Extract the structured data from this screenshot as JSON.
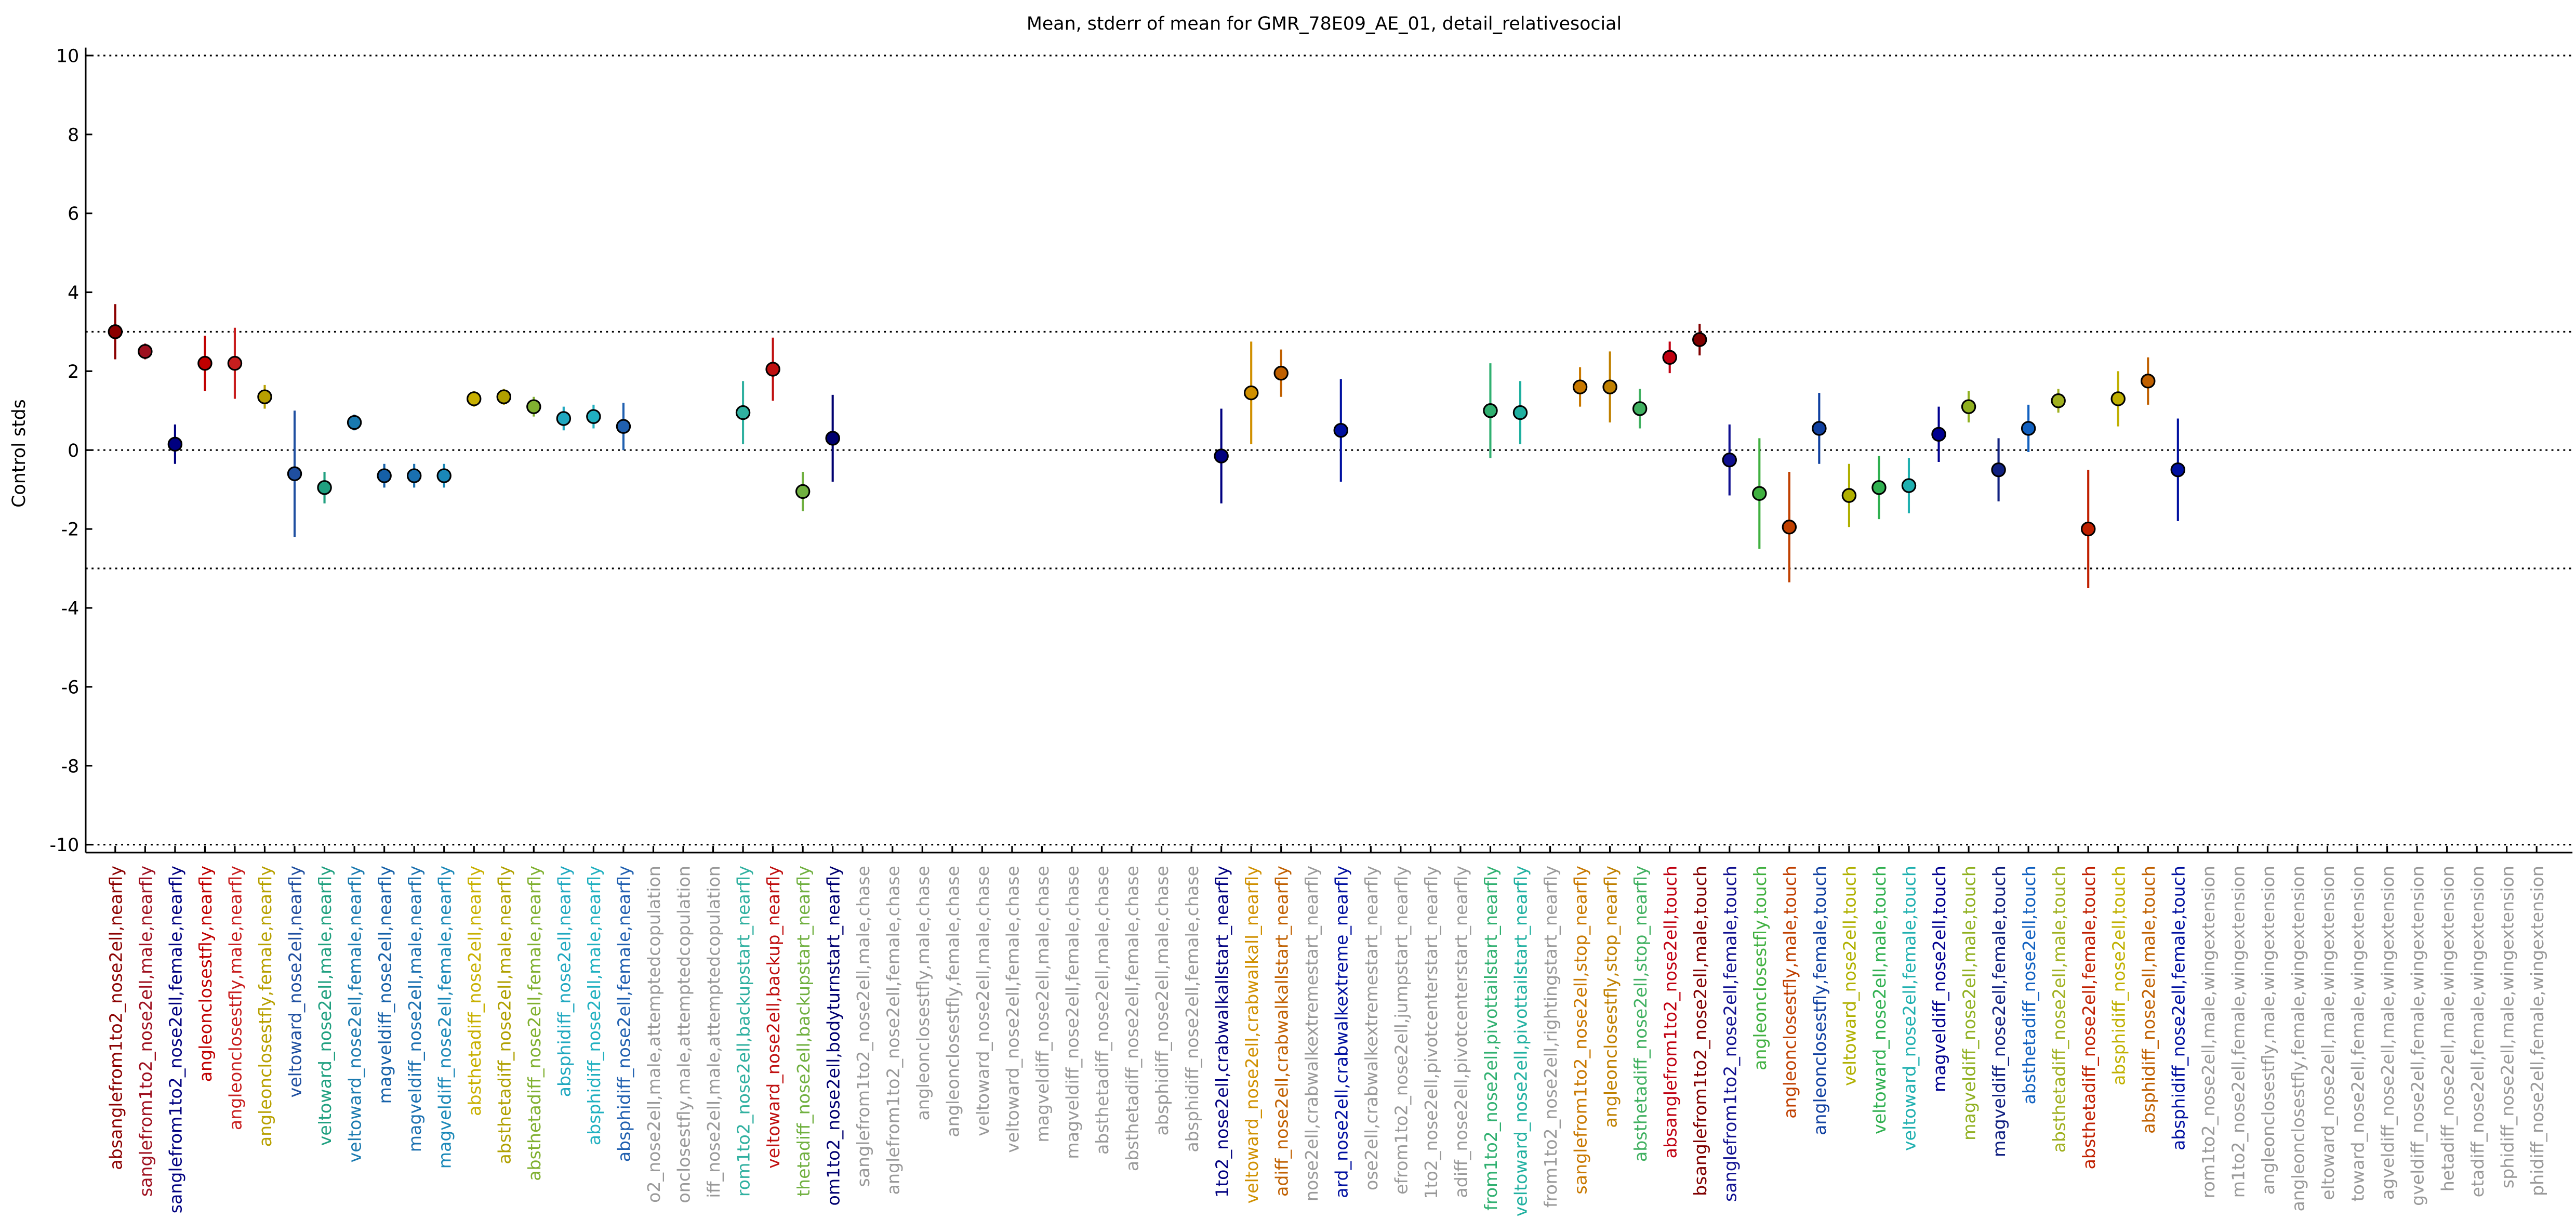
{
  "chart_data": {
    "type": "errorbar",
    "title": "Mean, stderr of mean for GMR_78E09_AE_01, detail_relativesocial",
    "y_label": "Control stds",
    "ylim": [
      -10.2,
      10.2
    ],
    "yticks": [
      -10,
      -8,
      -6,
      -4,
      -2,
      0,
      2,
      4,
      6,
      8,
      10
    ],
    "hlines": [
      -10,
      -3,
      0,
      3,
      10
    ],
    "categories": [
      "absanglefrom1to2_nose2ell,nearfly",
      "sanglefrom1to2_nose2ell,male,nearfly",
      "sanglefrom1to2_nose2ell,female,nearfly",
      "angleonclosestfly,nearfly",
      "angleonclosestfly,male,nearfly",
      "angleonclosestfly,female,nearfly",
      "veltoward_nose2ell,nearfly",
      "veltoward_nose2ell,male,nearfly",
      "veltoward_nose2ell,female,nearfly",
      "magveldiff_nose2ell,nearfly",
      "magveldiff_nose2ell,male,nearfly",
      "magveldiff_nose2ell,female,nearfly",
      "absthetadiff_nose2ell,nearfly",
      "absthetadiff_nose2ell,male,nearfly",
      "absthetadiff_nose2ell,female,nearfly",
      "absphidiff_nose2ell,nearfly",
      "absphidiff_nose2ell,male,nearfly",
      "absphidiff_nose2ell,female,nearfly",
      "o2_nose2ell,male,attemptedcopulation",
      "onclosestfly,male,attemptedcopulation",
      "iff_nose2ell,male,attemptedcopulation",
      "rom1to2_nose2ell,backupstart_nearfly",
      "veltoward_nose2ell,backup_nearfly",
      "thetadiff_nose2ell,backupstart_nearfly",
      "om1to2_nose2ell,bodyturnstart_nearfly",
      "sanglefrom1to2_nose2ell,male,chase",
      "anglefrom1to2_nose2ell,female,chase",
      "angleonclosestfly,male,chase",
      "angleonclosestfly,female,chase",
      "veltoward_nose2ell,male,chase",
      "veltoward_nose2ell,female,chase",
      "magveldiff_nose2ell,male,chase",
      "magveldiff_nose2ell,female,chase",
      "absthetadiff_nose2ell,male,chase",
      "absthetadiff_nose2ell,female,chase",
      "absphidiff_nose2ell,male,chase",
      "absphidiff_nose2ell,female,chase",
      "1to2_nose2ell,crabwalkallstart_nearfly",
      "veltoward_nose2ell,crabwalkall_nearfly",
      "adiff_nose2ell,crabwalkallstart_nearfly",
      "nose2ell,crabwalkextremestart_nearfly",
      "ard_nose2ell,crabwalkextreme_nearfly",
      "ose2ell,crabwalkextremestart_nearfly",
      "efrom1to2_nose2ell,jumpstart_nearfly",
      "1to2_nose2ell,pivotcenterstart_nearfly",
      "adiff_nose2ell,pivotcenterstart_nearfly",
      "from1to2_nose2ell,pivottailstart_nearfly",
      "veltoward_nose2ell,pivottailstart_nearfly",
      "from1to2_nose2ell,rightingstart_nearfly",
      "sanglefrom1to2_nose2ell,stop_nearfly",
      "angleonclosestfly,stop_nearfly",
      "absthetadiff_nose2ell,stop_nearfly",
      "absanglefrom1to2_nose2ell,touch",
      "bsanglefrom1to2_nose2ell,male,touch",
      "sanglefrom1to2_nose2ell,female,touch",
      "angleonclosestfly,touch",
      "angleonclosestfly,male,touch",
      "angleonclosestfly,female,touch",
      "veltoward_nose2ell,touch",
      "veltoward_nose2ell,male,touch",
      "veltoward_nose2ell,female,touch",
      "magveldiff_nose2ell,touch",
      "magveldiff_nose2ell,male,touch",
      "magveldiff_nose2ell,female,touch",
      "absthetadiff_nose2ell,touch",
      "absthetadiff_nose2ell,male,touch",
      "absthetadiff_nose2ell,female,touch",
      "absphidiff_nose2ell,touch",
      "absphidiff_nose2ell,male,touch",
      "absphidiff_nose2ell,female,touch",
      "rom1to2_nose2ell,male,wingextension",
      "m1to2_nose2ell,female,wingextension",
      "angleonclosestfly,male,wingextension",
      "angleonclosestfly,female,wingextension",
      "eltoward_nose2ell,male,wingextension",
      "toward_nose2ell,female,wingextension",
      "agveldiff_nose2ell,male,wingextension",
      "gveldiff_nose2ell,female,wingextension",
      "hetadiff_nose2ell,male,wingextension",
      "etadiff_nose2ell,female,wingextension",
      "sphidiff_nose2ell,male,wingextension",
      "phidiff_nose2ell,female,wingextension"
    ],
    "values": [
      3.0,
      2.5,
      0.15,
      2.2,
      2.2,
      1.35,
      -0.6,
      -0.95,
      0.7,
      -0.65,
      -0.65,
      -0.65,
      1.3,
      1.35,
      1.1,
      0.8,
      0.85,
      0.6,
      null,
      null,
      null,
      0.95,
      2.05,
      -1.05,
      0.3,
      null,
      null,
      null,
      null,
      null,
      null,
      null,
      null,
      null,
      null,
      null,
      null,
      -0.15,
      1.45,
      1.95,
      null,
      0.5,
      null,
      null,
      null,
      null,
      1.0,
      0.95,
      null,
      1.6,
      1.6,
      1.05,
      2.35,
      2.8,
      -0.25,
      -1.1,
      -1.95,
      0.55,
      -1.15,
      -0.95,
      -0.9,
      0.4,
      1.1,
      -0.5,
      0.55,
      1.25,
      -2.0,
      1.3,
      1.75,
      -0.5,
      null,
      null,
      null,
      null,
      null,
      null,
      null,
      null,
      null,
      null,
      null,
      null
    ],
    "errors": [
      0.7,
      0.2,
      0.5,
      0.7,
      0.9,
      0.3,
      1.6,
      0.4,
      0.2,
      0.3,
      0.3,
      0.3,
      0.2,
      0.2,
      0.25,
      0.3,
      0.3,
      0.6,
      null,
      null,
      null,
      0.8,
      0.8,
      0.5,
      1.1,
      null,
      null,
      null,
      null,
      null,
      null,
      null,
      null,
      null,
      null,
      null,
      null,
      1.2,
      1.3,
      0.6,
      null,
      1.3,
      null,
      null,
      null,
      null,
      1.2,
      0.8,
      null,
      0.5,
      0.9,
      0.5,
      0.4,
      0.4,
      0.9,
      1.4,
      1.4,
      0.9,
      0.8,
      0.8,
      0.7,
      0.7,
      0.4,
      0.8,
      0.6,
      0.3,
      1.5,
      0.7,
      0.6,
      1.3,
      null,
      null,
      null,
      null,
      null,
      null,
      null,
      null,
      null,
      null,
      null,
      null
    ],
    "colors": [
      "#8b0000",
      "#9e0f1e",
      "#000080",
      "#c00000",
      "#c81e1e",
      "#b8a000",
      "#1f4fa0",
      "#20a080",
      "#1a7ab0",
      "#1560a8",
      "#1a70b0",
      "#1a88b8",
      "#c8b000",
      "#b0a000",
      "#80b030",
      "#20a8c0",
      "#20b0c0",
      "#2060b0",
      "#999999",
      "#999999",
      "#999999",
      "#30b0a0",
      "#c01010",
      "#70b040",
      "#000070",
      "#999999",
      "#999999",
      "#999999",
      "#999999",
      "#999999",
      "#999999",
      "#999999",
      "#999999",
      "#999999",
      "#999999",
      "#999999",
      "#999999",
      "#000080",
      "#d09000",
      "#c06000",
      "#999999",
      "#0010a0",
      "#999999",
      "#999999",
      "#999999",
      "#999999",
      "#30b070",
      "#20b0a0",
      "#999999",
      "#c87800",
      "#c08000",
      "#40b060",
      "#c00010",
      "#800000",
      "#101090",
      "#40b040",
      "#c04000",
      "#1040a0",
      "#b0b000",
      "#30b050",
      "#20b0b0",
      "#000090",
      "#90b020",
      "#102080",
      "#1060c0",
      "#a0b020",
      "#c02000",
      "#c0b000",
      "#c06000",
      "#0010a0",
      "#999999",
      "#999999",
      "#999999",
      "#999999",
      "#999999",
      "#999999",
      "#999999",
      "#999999",
      "#999999",
      "#999999",
      "#999999",
      "#999999"
    ]
  }
}
